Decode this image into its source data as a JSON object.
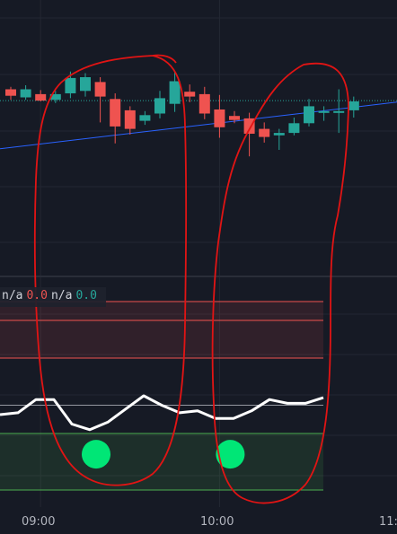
{
  "colors": {
    "background": "#161a25",
    "grid": "#232733",
    "bull": "#26a69a",
    "bear": "#ef5350",
    "trendline": "#2962ff",
    "rsi_line": "#ffffff",
    "upper_band": "#ef5350",
    "lower_band": "#4caf50",
    "signal_dot": "#00e676",
    "annotation": "#e11414"
  },
  "price_pane": {
    "candles": [
      {
        "o": 145,
        "c": 137,
        "h": 148,
        "l": 132
      },
      {
        "o": 135,
        "c": 145,
        "h": 150,
        "l": 132
      },
      {
        "o": 139,
        "c": 131,
        "h": 144,
        "l": 130
      },
      {
        "o": 132,
        "c": 139,
        "h": 143,
        "l": 128
      },
      {
        "o": 140,
        "c": 159,
        "h": 167,
        "l": 134
      },
      {
        "o": 143,
        "c": 160,
        "h": 165,
        "l": 136
      },
      {
        "o": 154,
        "c": 136,
        "h": 160,
        "l": 104
      },
      {
        "o": 133,
        "c": 99,
        "h": 140,
        "l": 78
      },
      {
        "o": 119,
        "c": 96,
        "h": 124,
        "l": 89
      },
      {
        "o": 106,
        "c": 113,
        "h": 118,
        "l": 101
      },
      {
        "o": 115,
        "c": 134,
        "h": 143,
        "l": 109
      },
      {
        "o": 127,
        "c": 155,
        "h": 167,
        "l": 117
      },
      {
        "o": 142,
        "c": 136,
        "h": 151,
        "l": 129
      },
      {
        "o": 139,
        "c": 115,
        "h": 148,
        "l": 108
      },
      {
        "o": 120,
        "c": 98,
        "h": 138,
        "l": 85
      },
      {
        "o": 112,
        "c": 107,
        "h": 118,
        "l": 103
      },
      {
        "o": 109,
        "c": 90,
        "h": 116,
        "l": 62
      },
      {
        "o": 96,
        "c": 86,
        "h": 104,
        "l": 79
      },
      {
        "o": 88,
        "c": 91,
        "h": 96,
        "l": 70
      },
      {
        "o": 91,
        "c": 103,
        "h": 110,
        "l": 88
      },
      {
        "o": 103,
        "c": 124,
        "h": 133,
        "l": 99
      },
      {
        "o": 116,
        "c": 118,
        "h": 124,
        "l": 106
      },
      {
        "o": 117,
        "c": 118,
        "h": 145,
        "l": 91
      },
      {
        "o": 119,
        "c": 130,
        "h": 136,
        "l": 110
      }
    ],
    "last_price_level": 131,
    "trendline": {
      "from_index": 0,
      "from_value": 73,
      "to_index": 24,
      "to_value": 125
    }
  },
  "indicator_pane": {
    "legend": [
      {
        "label": "n/a",
        "value": "0.0",
        "color": "#ef5350"
      },
      {
        "label": "n/a",
        "value": "0.0",
        "color": "#26a69a"
      }
    ],
    "upper_zone": [
      70,
      100
    ],
    "upper_mid_line": 90,
    "lower_zone": [
      0,
      30
    ],
    "reference_line": 45,
    "rsi_values": [
      40,
      41,
      48,
      48,
      35,
      32,
      36,
      43,
      50,
      45,
      41,
      42,
      38,
      38,
      42,
      48,
      46,
      46,
      49
    ],
    "signal_dots": [
      {
        "index": 5,
        "value": 19
      },
      {
        "index": 14,
        "value": 19
      }
    ]
  },
  "time_axis": {
    "labels": [
      {
        "index": 2,
        "text": "09:00"
      },
      {
        "index": 14,
        "text": "10:00"
      },
      {
        "index": 26,
        "text": "11:"
      }
    ]
  }
}
